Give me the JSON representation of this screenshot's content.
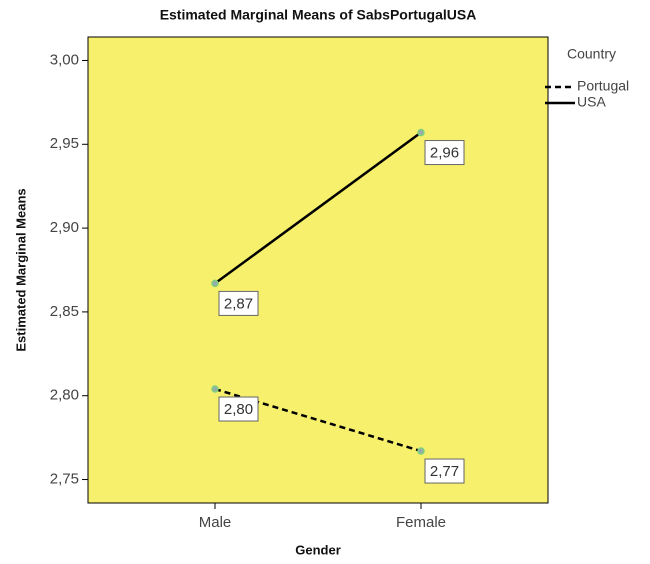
{
  "chart_data": {
    "type": "line",
    "title": "Estimated Marginal Means of SabsPortugalUSA",
    "x_label": "Gender",
    "y_label": "Estimated Marginal Means",
    "legend_title": "Country",
    "legend_position": "outside-right",
    "background": "#f7f06c",
    "categories": [
      "Male",
      "Female"
    ],
    "series": [
      {
        "name": "Portugal",
        "color": "#000000",
        "line_style": "dashed",
        "values": [
          2.804,
          2.767
        ],
        "value_labels": [
          "2,80",
          "2,77"
        ]
      },
      {
        "name": "USA",
        "color": "#000000",
        "line_style": "solid",
        "values": [
          2.867,
          2.957
        ],
        "value_labels": [
          "2,87",
          "2,96"
        ]
      }
    ],
    "ylim": [
      2.736,
      3.014
    ],
    "yticks": [
      {
        "value": 2.75,
        "label": "2,75"
      },
      {
        "value": 2.8,
        "label": "2,80"
      },
      {
        "value": 2.85,
        "label": "2,85"
      },
      {
        "value": 2.9,
        "label": "2,90"
      },
      {
        "value": 2.95,
        "label": "2,95"
      },
      {
        "value": 3.0,
        "label": "3,00"
      }
    ]
  }
}
